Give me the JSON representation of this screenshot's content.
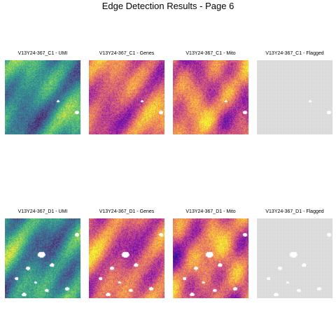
{
  "page_title": "Edge Detection Results - Page 6",
  "palettes": {
    "viridis": [
      "#440154",
      "#3b528b",
      "#21908c",
      "#5dc863",
      "#fde725"
    ],
    "plasma": [
      "#0d0887",
      "#7e03a8",
      "#cc4778",
      "#f89540",
      "#f0f921"
    ],
    "flagged": [
      "#d9d9d9",
      "#d9d9d9"
    ]
  },
  "chart_data": [
    {
      "type": "heatmap",
      "title": "V13Y24-367_C1 - UMI",
      "palette": "viridis",
      "sample": "C1",
      "metric": "umi"
    },
    {
      "type": "heatmap",
      "title": "V13Y24-367_C1 - Genes",
      "palette": "plasma",
      "sample": "C1",
      "metric": "genes"
    },
    {
      "type": "heatmap",
      "title": "V13Y24-367_C1 - Mito",
      "palette": "plasma",
      "sample": "C1",
      "metric": "mito"
    },
    {
      "type": "heatmap",
      "title": "V13Y24-367_C1 - Flagged",
      "palette": "flagged",
      "sample": "C1",
      "metric": "flagged"
    },
    {
      "type": "heatmap",
      "title": "V13Y24-367_D1 - UMI",
      "palette": "viridis",
      "sample": "D1",
      "metric": "umi"
    },
    {
      "type": "heatmap",
      "title": "V13Y24-367_D1 - Genes",
      "palette": "plasma",
      "sample": "D1",
      "metric": "genes"
    },
    {
      "type": "heatmap",
      "title": "V13Y24-367_D1 - Mito",
      "palette": "plasma",
      "sample": "D1",
      "metric": "mito"
    },
    {
      "type": "heatmap",
      "title": "V13Y24-367_D1 - Flagged",
      "palette": "flagged",
      "sample": "D1",
      "metric": "flagged"
    }
  ]
}
